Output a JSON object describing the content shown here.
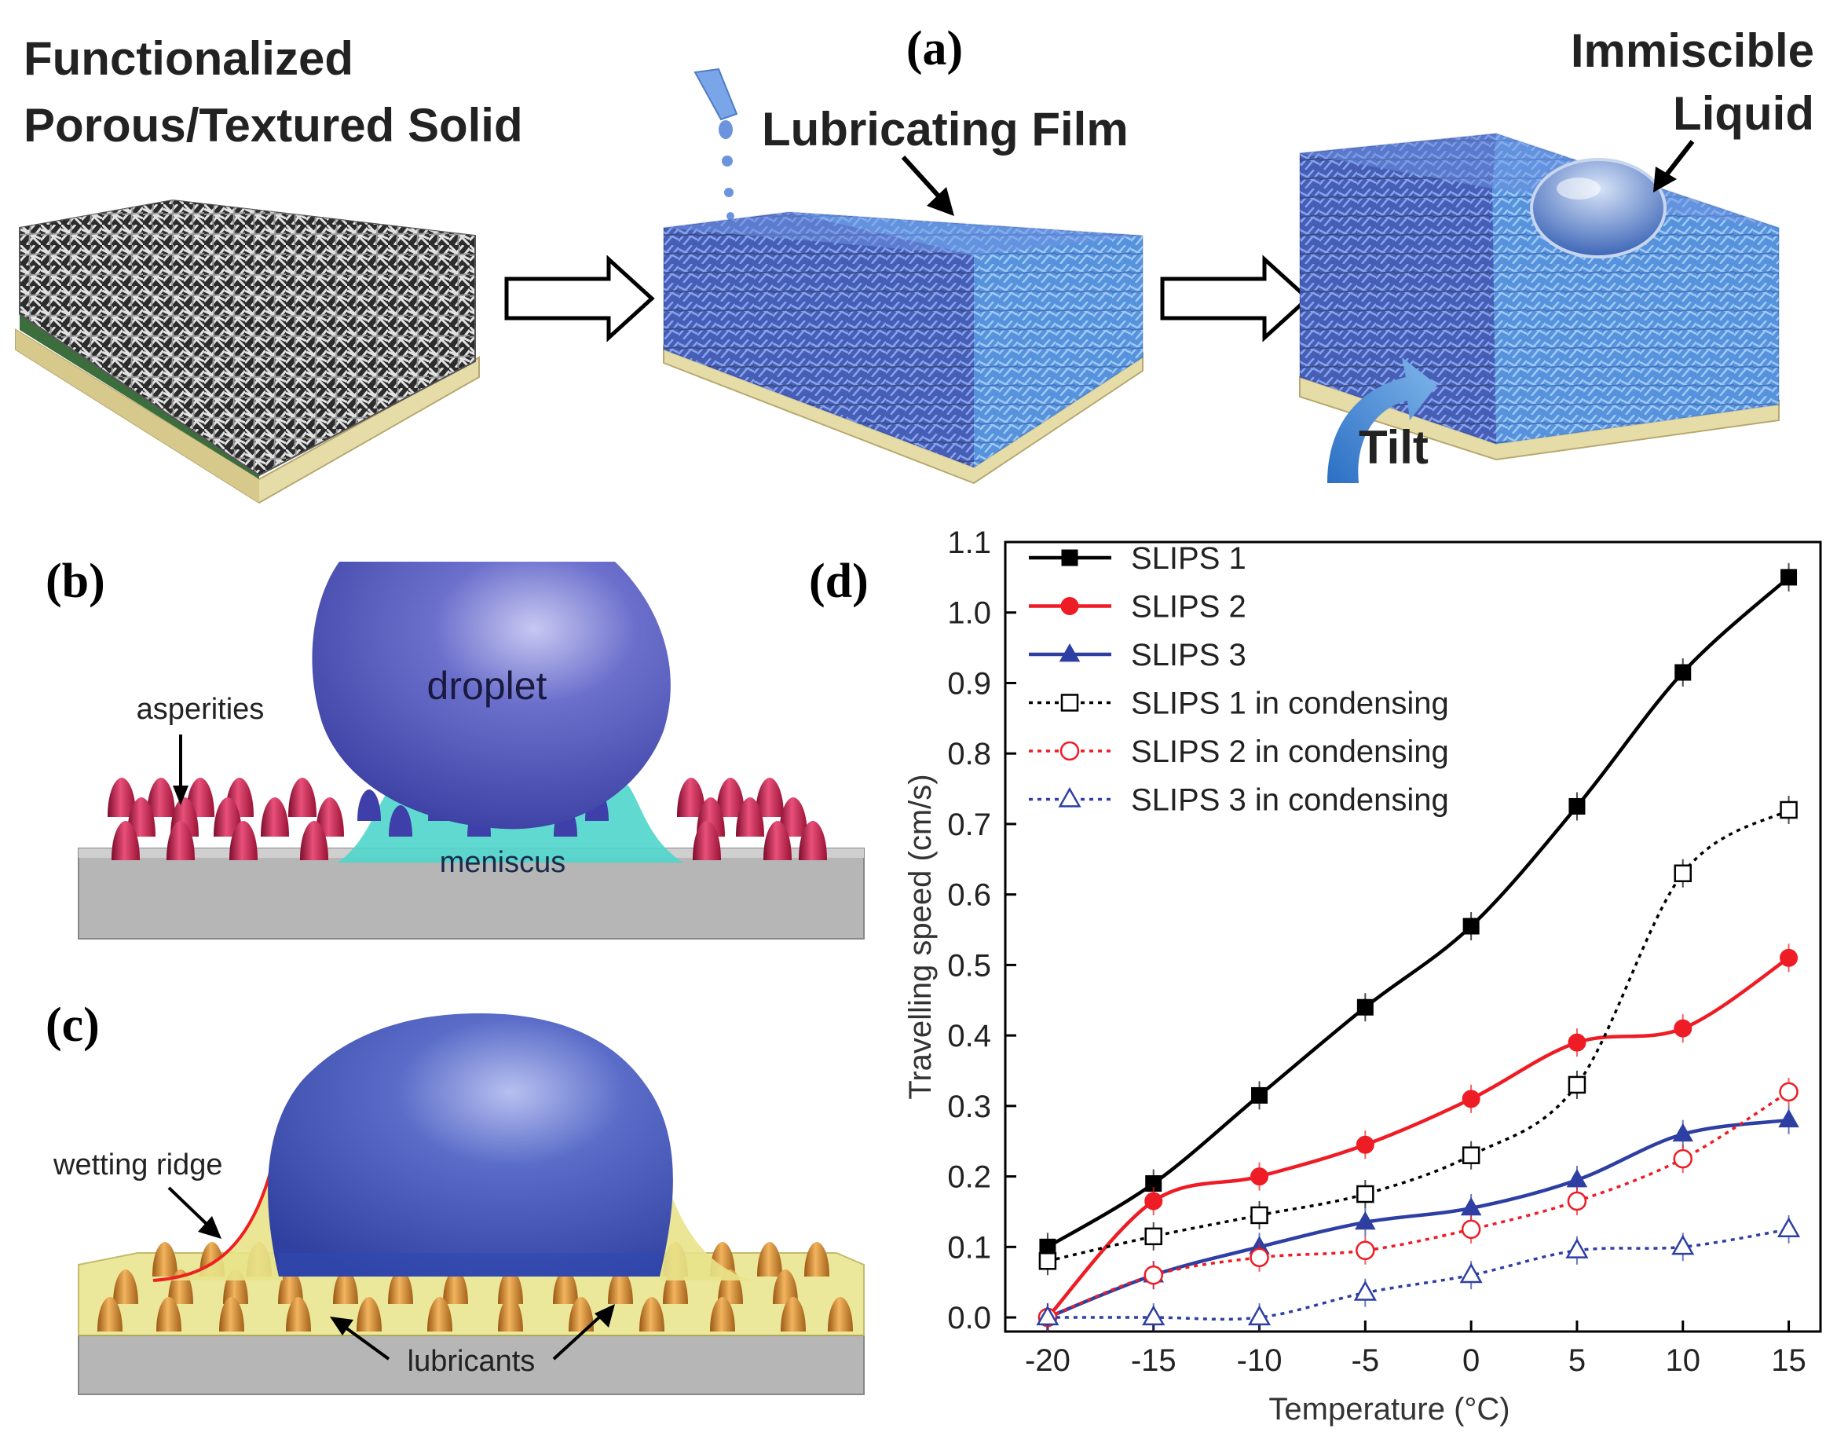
{
  "panel_a": {
    "label": "(a)",
    "step1_title_line1": "Functionalized",
    "step1_title_line2": "Porous/Textured Solid",
    "step2_title": "Lubricating Film",
    "step3_title_line1": "Immiscible",
    "step3_title_line2": "Liquid",
    "tilt_label": "Tilt"
  },
  "panel_b": {
    "label": "(b)",
    "droplet_label": "droplet",
    "asperities_label": "asperities",
    "meniscus_label": "meniscus"
  },
  "panel_c": {
    "label": "(c)",
    "wetting_ridge_label": "wetting ridge",
    "lubricants_label": "lubricants"
  },
  "panel_d": {
    "label": "(d)"
  },
  "colors": {
    "solid_gray": "#b8b8b8",
    "base_tan": "#e6dca8",
    "film_blue": "#5a86d8",
    "droplet_blue": "#4a55b8",
    "asperity_red": "#c81e4a",
    "meniscus_cyan": "#4fd6cc",
    "lubricant_yellow": "#e8e38a",
    "bump_orange": "#d89436",
    "series_black": "#000000",
    "series_red": "#ee1c24",
    "series_blue": "#2e3fa3",
    "arrow_blue": "#3f87d6"
  },
  "chart_data": {
    "type": "line",
    "xlabel": "Temperature (°C)",
    "ylabel": "Travelling speed (cm/s)",
    "x": [
      -20,
      -15,
      -10,
      -5,
      0,
      5,
      10,
      15
    ],
    "xlim": [
      -22,
      16.5
    ],
    "ylim": [
      -0.02,
      1.1
    ],
    "xticks": [
      "-20",
      "-15",
      "-10",
      "-5",
      "0",
      "5",
      "10",
      "15"
    ],
    "yticks": [
      "0.0",
      "0.1",
      "0.2",
      "0.3",
      "0.4",
      "0.5",
      "0.6",
      "0.7",
      "0.8",
      "0.9",
      "1.0",
      "1.1"
    ],
    "legend_position": "top-left",
    "series": [
      {
        "name": "SLIPS 1",
        "values": [
          0.1,
          0.19,
          0.315,
          0.44,
          0.555,
          0.725,
          0.915,
          1.05
        ],
        "color": "#000000",
        "marker": "square",
        "filled": true,
        "dashed": false
      },
      {
        "name": "SLIPS 2",
        "values": [
          0.0,
          0.165,
          0.2,
          0.245,
          0.31,
          0.39,
          0.41,
          0.51
        ],
        "color": "#ee1c24",
        "marker": "circle",
        "filled": true,
        "dashed": false
      },
      {
        "name": "SLIPS 3",
        "values": [
          0.0,
          0.06,
          0.1,
          0.135,
          0.155,
          0.195,
          0.26,
          0.28
        ],
        "color": "#2e3fa3",
        "marker": "triangle",
        "filled": true,
        "dashed": false
      },
      {
        "name": "SLIPS 1 in condensing",
        "values": [
          0.08,
          0.115,
          0.145,
          0.175,
          0.23,
          0.33,
          0.63,
          0.72
        ],
        "color": "#000000",
        "marker": "square",
        "filled": false,
        "dashed": true
      },
      {
        "name": "SLIPS 2 in condensing",
        "values": [
          0.0,
          0.06,
          0.085,
          0.095,
          0.125,
          0.165,
          0.225,
          0.32
        ],
        "color": "#ee1c24",
        "marker": "circle",
        "filled": false,
        "dashed": true
      },
      {
        "name": "SLIPS 3 in condensing",
        "values": [
          0.0,
          0.0,
          0.0,
          0.035,
          0.06,
          0.095,
          0.1,
          0.125
        ],
        "color": "#2e3fa3",
        "marker": "triangle",
        "filled": false,
        "dashed": true
      }
    ]
  }
}
